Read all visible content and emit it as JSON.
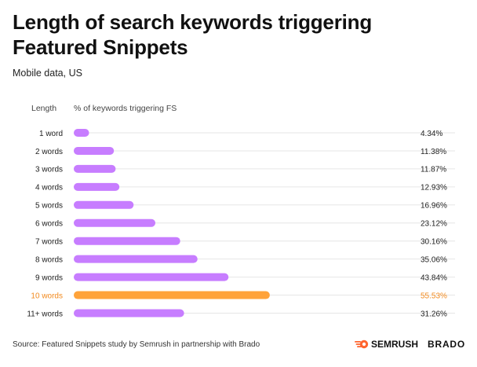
{
  "header": {
    "title": "Length of search keywords triggering Featured Snippets",
    "subtitle": "Mobile data, US"
  },
  "footer": {
    "source": "Source: Featured Snippets study by Semrush in partnership with Brado",
    "logo_semrush": "SEMRUSH",
    "logo_brado": "BRADO"
  },
  "colors": {
    "bar": "#C77DFF",
    "highlight": "#FFA33A",
    "highlight_text": "#F28A1E",
    "grid": "#E6E6E6"
  },
  "chart_data": {
    "type": "bar",
    "orientation": "horizontal",
    "column_header_category": "Length",
    "column_header_value": "% of keywords triggering FS",
    "categories": [
      "1 word",
      "2 words",
      "3 words",
      "4 words",
      "5 words",
      "6 words",
      "7 words",
      "8 words",
      "9 words",
      "10 words",
      "11+ words"
    ],
    "values": [
      4.34,
      11.38,
      11.87,
      12.93,
      16.96,
      23.12,
      30.16,
      35.06,
      43.84,
      55.53,
      31.26
    ],
    "value_labels": [
      "4.34%",
      "11.38%",
      "11.87%",
      "12.93%",
      "16.96%",
      "23.12%",
      "30.16%",
      "35.06%",
      "43.84%",
      "55.53%",
      "31.26%"
    ],
    "highlight_category": "10 words",
    "xlim": [
      0,
      100
    ]
  }
}
